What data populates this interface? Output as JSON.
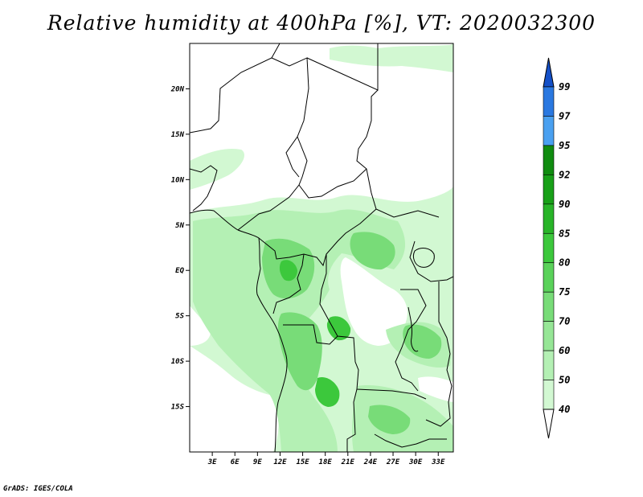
{
  "title": "Relative humidity at 400hPa [%], VT: 2020032300",
  "credit": "GrADS: IGES/COLA",
  "map": {
    "lon_range": [
      0,
      35
    ],
    "lat_range": [
      -20,
      25
    ],
    "lat_ticks": [
      {
        "label": "20N",
        "lat": 20
      },
      {
        "label": "15N",
        "lat": 15
      },
      {
        "label": "10N",
        "lat": 10
      },
      {
        "label": "5N",
        "lat": 5
      },
      {
        "label": "EQ",
        "lat": 0
      },
      {
        "label": "5S",
        "lat": -5
      },
      {
        "label": "10S",
        "lat": -10
      },
      {
        "label": "15S",
        "lat": -15
      }
    ],
    "lon_ticks": [
      {
        "label": "3E",
        "lon": 3
      },
      {
        "label": "6E",
        "lon": 6
      },
      {
        "label": "9E",
        "lon": 9
      },
      {
        "label": "12E",
        "lon": 12
      },
      {
        "label": "15E",
        "lon": 15
      },
      {
        "label": "18E",
        "lon": 18
      },
      {
        "label": "21E",
        "lon": 21
      },
      {
        "label": "24E",
        "lon": 24
      },
      {
        "label": "27E",
        "lon": 27
      },
      {
        "label": "30E",
        "lon": 30
      },
      {
        "label": "33E",
        "lon": 33
      }
    ]
  },
  "colorbar": {
    "levels": [
      "40",
      "50",
      "60",
      "70",
      "75",
      "80",
      "85",
      "90",
      "92",
      "95",
      "97",
      "99"
    ],
    "colors": [
      "#f0fff0",
      "#d2f8d2",
      "#b4f0b4",
      "#96e696",
      "#78dc78",
      "#5ad25a",
      "#3cc83c",
      "#28b428",
      "#18a018",
      "#108c10",
      "#4aa0f0",
      "#2a78e0",
      "#1450c8"
    ]
  },
  "colors": {
    "frame": "#000000",
    "boundary": "#000000",
    "background": "#ffffff"
  }
}
